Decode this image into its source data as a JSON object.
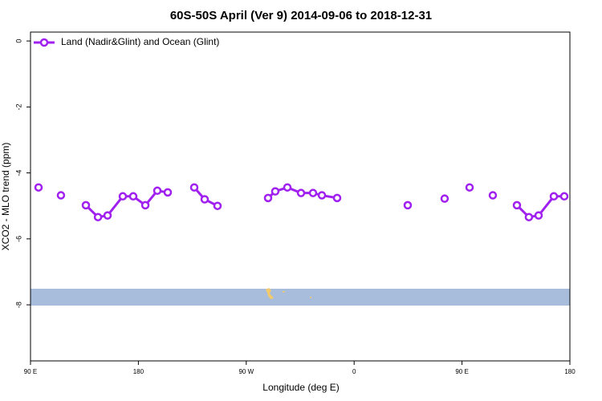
{
  "chart_data": {
    "type": "line",
    "title": "60S-50S April (Ver 9)   2014-09-06 to 2018-12-31",
    "x_label": "Longitude (deg E)",
    "y_label": "XCO2 - MLO trend (ppm)",
    "xlim": [
      90,
      540
    ],
    "xticks": [
      {
        "value": 90,
        "label": "90 E"
      },
      {
        "value": 180,
        "label": "180"
      },
      {
        "value": 270,
        "label": "90 W"
      },
      {
        "value": 360,
        "label": "0"
      },
      {
        "value": 450,
        "label": "90 E"
      },
      {
        "value": 540,
        "label": "180"
      }
    ],
    "ylim": [
      -9.7,
      0.27
    ],
    "yticks": [
      0,
      -2,
      -4,
      -6,
      -8
    ],
    "legend": "top-left",
    "x": [
      96.7,
      null,
      115.4,
      null,
      136.2,
      146.3,
      154.3,
      167.0,
      175.7,
      185.8,
      195.8,
      204.5,
      null,
      226.6,
      235.3,
      246.0,
      null,
      288.2,
      294.2,
      304.3,
      315.7,
      325.7,
      333.1,
      345.8,
      null,
      404.7,
      null,
      435.5,
      null,
      456.3,
      null,
      475.7,
      null,
      495.8,
      505.8,
      513.9,
      526.6,
      535.3
    ],
    "series": [
      {
        "name": "Land (Nadir&Glint) and Ocean (Glint)",
        "color": "#a020f0",
        "values": [
          -4.44,
          null,
          -4.68,
          null,
          -4.98,
          -5.34,
          -5.29,
          -4.71,
          -4.71,
          -4.98,
          -4.54,
          -4.59,
          null,
          -4.44,
          -4.8,
          -5.0,
          null,
          -4.76,
          -4.56,
          -4.44,
          -4.61,
          -4.61,
          -4.68,
          -4.76,
          null,
          -4.98,
          null,
          -4.78,
          null,
          -4.44,
          null,
          -4.68,
          null,
          -4.98,
          -5.34,
          -5.29,
          -4.71,
          -4.71
        ]
      }
    ]
  }
}
